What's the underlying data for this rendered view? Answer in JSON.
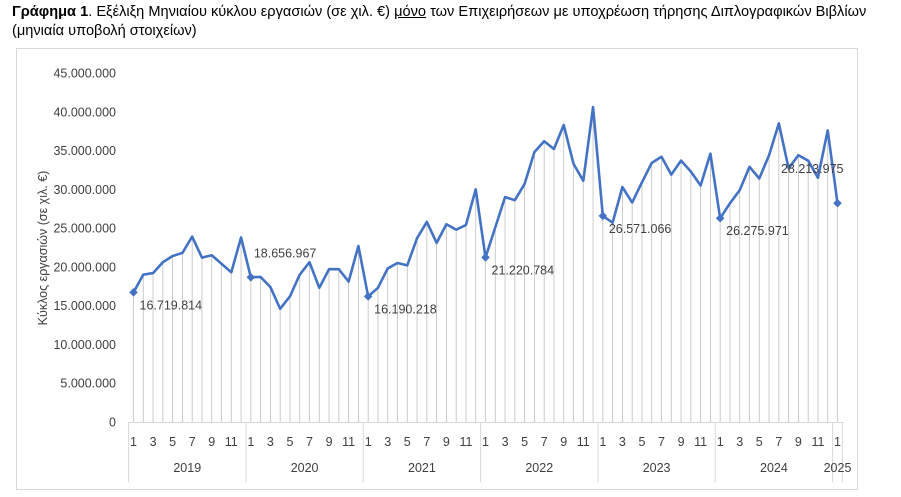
{
  "caption": {
    "label": "Γράφημα 1",
    "sep": ". ",
    "text_a": "Εξέλιξη Μηνιαίου κύκλου εργασιών (σε χιλ. €) ",
    "underlined": "μόνο",
    "text_b": " των Επιχειρήσεων με υποχρέωση τήρησης Διπλογραφικών Βιβλίων (μηνιαία υποβολή στοιχείων)"
  },
  "colors": {
    "line": "#4472c4",
    "drop_line": "#bfbfbf",
    "text": "#404040",
    "border": "#d9d9d9"
  },
  "chart_data": {
    "type": "line",
    "ylabel": "Κύκλος εργασιών (σε χιλ. €)",
    "ylim": [
      0,
      45000000
    ],
    "y_ticks": [
      0,
      5000000,
      10000000,
      15000000,
      20000000,
      25000000,
      30000000,
      35000000,
      40000000,
      45000000
    ],
    "y_tick_labels": [
      "0",
      "5.000.000",
      "10.000.000",
      "15.000.000",
      "20.000.000",
      "25.000.000",
      "30.000.000",
      "35.000.000",
      "40.000.000",
      "45.000.000"
    ],
    "drop_lines": true,
    "grid": false,
    "legend": "none",
    "x_month_labels": [
      "1",
      "3",
      "5",
      "7",
      "9",
      "11",
      "1",
      "3",
      "5",
      "7",
      "9",
      "11",
      "1",
      "3",
      "5",
      "7",
      "9",
      "11",
      "1",
      "3",
      "5",
      "7",
      "9",
      "11",
      "1",
      "3",
      "5",
      "7",
      "9",
      "11",
      "1",
      "3",
      "5",
      "7",
      "9",
      "11",
      "1"
    ],
    "years": [
      {
        "label": "2019",
        "start": 0,
        "count": 12
      },
      {
        "label": "2020",
        "start": 12,
        "count": 12
      },
      {
        "label": "2021",
        "start": 24,
        "count": 12
      },
      {
        "label": "2022",
        "start": 36,
        "count": 12
      },
      {
        "label": "2023",
        "start": 48,
        "count": 12
      },
      {
        "label": "2024",
        "start": 60,
        "count": 12
      },
      {
        "label": "2025",
        "start": 72,
        "count": 1
      }
    ],
    "values": [
      16719814,
      19000000,
      19200000,
      20600000,
      21400000,
      21800000,
      23900000,
      21200000,
      21500000,
      20400000,
      19300000,
      23800000,
      18656967,
      18700000,
      17400000,
      14600000,
      16200000,
      19000000,
      20600000,
      17300000,
      19700000,
      19700000,
      18100000,
      22700000,
      16190218,
      17300000,
      19800000,
      20500000,
      20200000,
      23700000,
      25800000,
      23100000,
      25500000,
      24800000,
      25400000,
      30000000,
      21220784,
      25100000,
      29000000,
      28600000,
      30700000,
      34800000,
      36200000,
      35200000,
      38300000,
      33300000,
      31100000,
      40600000,
      26571066,
      25700000,
      30300000,
      28300000,
      30900000,
      33400000,
      34200000,
      31900000,
      33700000,
      32300000,
      30500000,
      34600000,
      26275971,
      28200000,
      29900000,
      32900000,
      31400000,
      34400000,
      38500000,
      32700000,
      34400000,
      33700000,
      31500000,
      37600000,
      28213975
    ],
    "marked_points": [
      {
        "index": 0,
        "label": "16.719.814"
      },
      {
        "index": 12,
        "label": "18.656.967"
      },
      {
        "index": 24,
        "label": "16.190.218"
      },
      {
        "index": 36,
        "label": "21.220.784"
      },
      {
        "index": 48,
        "label": "26.571.066"
      },
      {
        "index": 60,
        "label": "26.275.971"
      },
      {
        "index": 72,
        "label": "28.213.975"
      }
    ]
  }
}
